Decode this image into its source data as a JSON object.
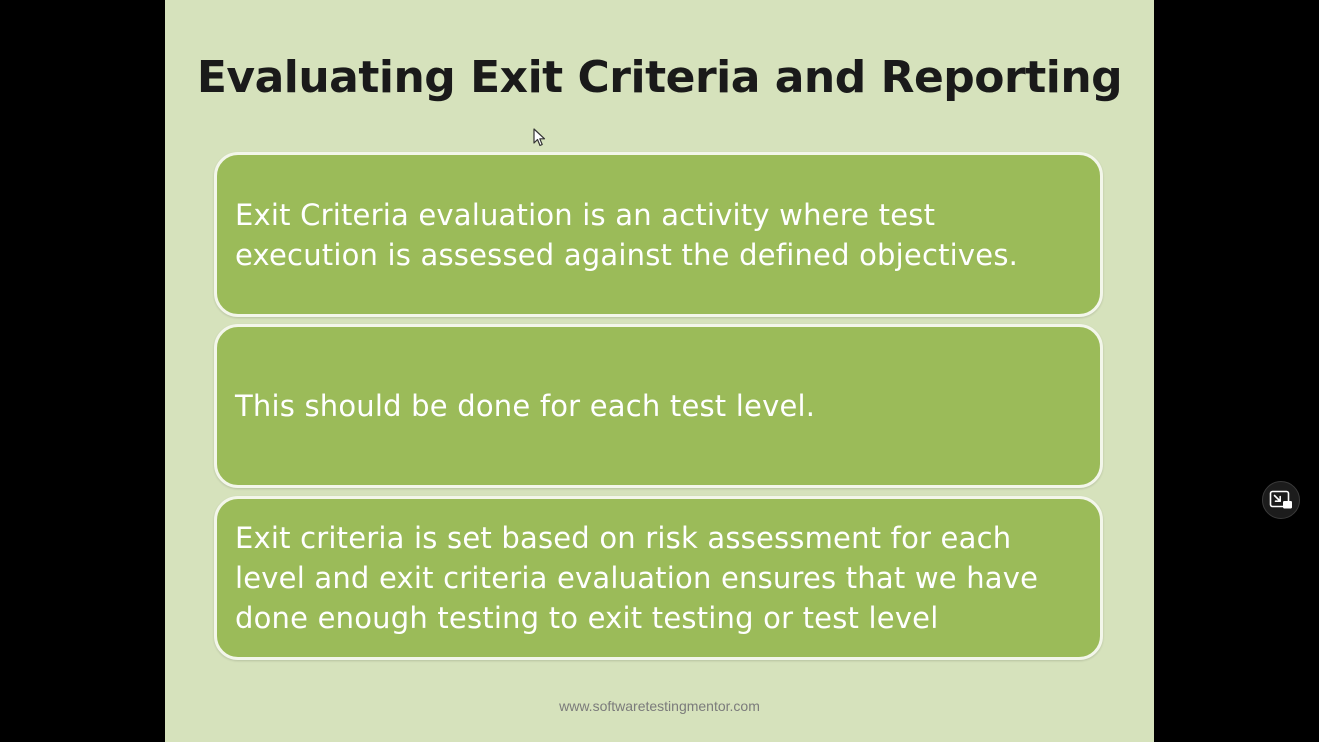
{
  "slide": {
    "title": "Evaluating Exit Criteria and Reporting",
    "boxes": [
      {
        "text": "Exit Criteria evaluation is an activity where test execution is assessed against the defined objectives."
      },
      {
        "text": "This should be done for each test level."
      },
      {
        "text": "Exit criteria is set based on risk assessment for each level and exit criteria evaluation ensures that we have done enough testing to exit testing or test level"
      }
    ],
    "footer": "www.softwaretestingmentor.com"
  },
  "colors": {
    "page_background": "#000000",
    "slide_background": "#d6e2bc",
    "box_fill": "#9bbb59",
    "box_border": "#f3f6ea",
    "title_text": "#1a1a1a",
    "box_text": "#ffffff"
  },
  "icons": {
    "cursor": "mouse-pointer-icon",
    "player_control": "picture-in-picture-icon"
  }
}
